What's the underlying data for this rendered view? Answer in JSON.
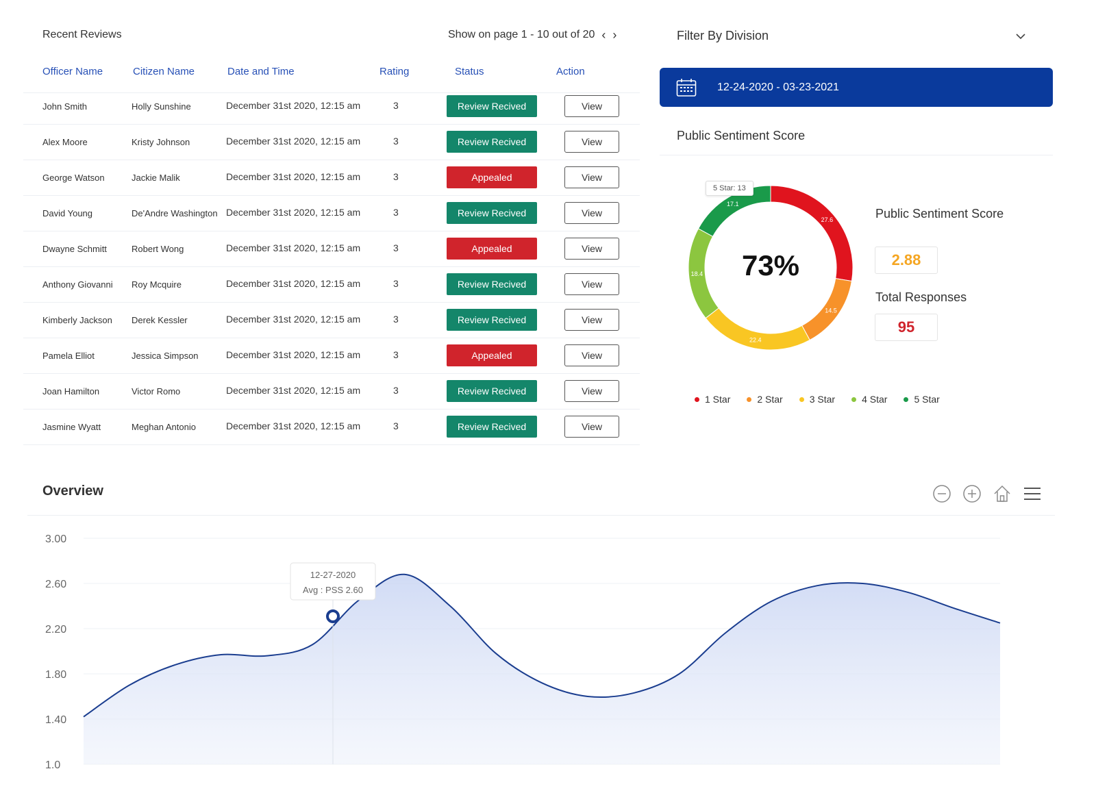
{
  "reviews": {
    "title": "Recent Reviews",
    "pager": "Show on page 1 - 10 out of 20",
    "columns": {
      "officer": "Officer Name",
      "citizen": "Citizen Name",
      "date": "Date and Time",
      "rating": "Rating",
      "status": "Status",
      "action": "Action"
    },
    "rows": [
      {
        "officer": "John Smith",
        "citizen": "Holly Sunshine",
        "date": "December 31st 2020, 12:15 am",
        "rating": "3",
        "status": "Review Recived",
        "status_type": "received",
        "action": "View"
      },
      {
        "officer": "Alex Moore",
        "citizen": "Kristy Johnson",
        "date": "December 31st 2020, 12:15 am",
        "rating": "3",
        "status": "Review Recived",
        "status_type": "received",
        "action": "View"
      },
      {
        "officer": "George Watson",
        "citizen": "Jackie Malik",
        "date": "December 31st 2020, 12:15 am",
        "rating": "3",
        "status": "Appealed",
        "status_type": "appealed",
        "action": "View"
      },
      {
        "officer": "David Young",
        "citizen": "De'Andre Washington",
        "date": "December 31st 2020, 12:15 am",
        "rating": "3",
        "status": "Review Recived",
        "status_type": "received",
        "action": "View"
      },
      {
        "officer": "Dwayne Schmitt",
        "citizen": "Robert Wong",
        "date": "December 31st 2020, 12:15 am",
        "rating": "3",
        "status": "Appealed",
        "status_type": "appealed",
        "action": "View"
      },
      {
        "officer": "Anthony Giovanni",
        "citizen": "Roy Mcquire",
        "date": "December 31st 2020, 12:15 am",
        "rating": "3",
        "status": "Review Recived",
        "status_type": "received",
        "action": "View"
      },
      {
        "officer": "Kimberly Jackson",
        "citizen": "Derek Kessler",
        "date": "December 31st 2020, 12:15 am",
        "rating": "3",
        "status": "Review Recived",
        "status_type": "received",
        "action": "View"
      },
      {
        "officer": "Pamela Elliot",
        "citizen": "Jessica Simpson",
        "date": "December 31st 2020, 12:15 am",
        "rating": "3",
        "status": "Appealed",
        "status_type": "appealed",
        "action": "View"
      },
      {
        "officer": "Joan Hamilton",
        "citizen": "Victor Romo",
        "date": "December 31st 2020, 12:15 am",
        "rating": "3",
        "status": "Review Recived",
        "status_type": "received",
        "action": "View"
      },
      {
        "officer": "Jasmine Wyatt",
        "citizen": "Meghan Antonio",
        "date": "December 31st 2020, 12:15 am",
        "rating": "3",
        "status": "Review Recived",
        "status_type": "received",
        "action": "View"
      }
    ]
  },
  "filter": {
    "label": "Filter By Division",
    "date_range": "12-24-2020 - 03-23-2021"
  },
  "sentiment": {
    "section_title": "Public Sentiment Score",
    "center_label": "73%",
    "tooltip": "5 Star: 13",
    "side_title": "Public Sentiment Score",
    "score": "2.88",
    "responses_title": "Total Responses",
    "responses": "95",
    "legend": [
      "1 Star",
      "2 Star",
      "3 Star",
      "4 Star",
      "5 Star"
    ]
  },
  "overview": {
    "title": "Overview",
    "tooltip_date": "12-27-2020",
    "tooltip_value": "Avg : PSS 2.60"
  },
  "colors": {
    "brand_blue": "#0a3a9c",
    "received": "#14866a",
    "appealed": "#d0242c",
    "star1": "#e0141e",
    "star2": "#f7922a",
    "star3": "#f9c623",
    "star4": "#8cc63f",
    "star5": "#1a9a4a",
    "line": "#1a3d8f"
  },
  "chart_data": [
    {
      "type": "pie",
      "title": "",
      "center_label": "73%",
      "categories": [
        "1 Star",
        "2 Star",
        "3 Star",
        "4 Star",
        "5 Star"
      ],
      "values": [
        27.6,
        14.5,
        22.4,
        18.4,
        17.1
      ],
      "colors": [
        "#e0141e",
        "#f7922a",
        "#f9c623",
        "#8cc63f",
        "#1a9a4a"
      ],
      "legend": "bottom"
    },
    {
      "type": "area",
      "title": "Overview",
      "xlabel": "",
      "ylabel": "",
      "y_ticks": [
        "3.00",
        "2.60",
        "2.20",
        "1.80",
        "1.40",
        "1.0"
      ],
      "ylim": [
        1.0,
        3.0
      ],
      "x": [
        0,
        1,
        2,
        3,
        4,
        5,
        6,
        7,
        8,
        9,
        10,
        11,
        12,
        13,
        14,
        15,
        16,
        17,
        18,
        19,
        20
      ],
      "values": [
        1.42,
        1.7,
        1.88,
        1.97,
        1.96,
        2.06,
        2.45,
        2.68,
        2.4,
        1.98,
        1.72,
        1.6,
        1.63,
        1.8,
        2.16,
        2.44,
        2.58,
        2.6,
        2.52,
        2.38,
        2.25
      ],
      "highlight": {
        "label": "12-27-2020",
        "value": 2.6
      },
      "grid": true
    }
  ]
}
